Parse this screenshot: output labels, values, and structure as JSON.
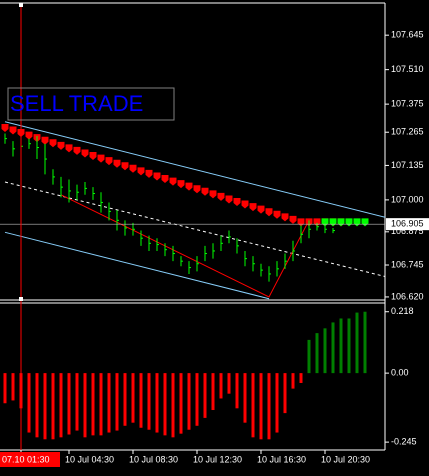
{
  "chart_data": [
    {
      "type": "ohlc",
      "annotation": "SELL TRADE",
      "categories": [
        null,
        null,
        "07.10 01:30",
        null,
        null,
        null,
        null,
        null,
        "10 Jul 04:30",
        null,
        null,
        null,
        null,
        null,
        null,
        null,
        "10 Jul 08:30",
        null,
        null,
        null,
        null,
        null,
        null,
        null,
        "10 Jul 12:30",
        null,
        null,
        null,
        null,
        null,
        null,
        null,
        "10 Jul 16:30",
        null,
        null,
        null,
        null,
        null,
        null,
        null,
        "10 Jul 20:30",
        null,
        null,
        null,
        null,
        null
      ],
      "highlight_x": 2,
      "highlight_color": "#ff0000",
      "bars": {
        "color": "#00ff00",
        "high": [
          107.26,
          107.23,
          107.24,
          107.24,
          107.25,
          107.22,
          107.12,
          107.09,
          107.08,
          107.06,
          107.07,
          107.05,
          107.03,
          106.99,
          106.96,
          106.92,
          106.91,
          106.88,
          106.86,
          106.85,
          106.83,
          106.82,
          106.78,
          106.76,
          106.78,
          106.82,
          106.83,
          106.86,
          106.88,
          106.85,
          106.8,
          106.78,
          106.75,
          106.74,
          106.76,
          106.79,
          106.84,
          106.9,
          106.92,
          106.91,
          106.9,
          106.89,
          null,
          null,
          null,
          null
        ],
        "low": [
          107.22,
          107.17,
          107.18,
          107.2,
          107.16,
          107.1,
          107.06,
          107.01,
          106.99,
          107.0,
          107.02,
          107.0,
          106.95,
          106.92,
          106.88,
          106.86,
          106.86,
          106.82,
          106.8,
          106.8,
          106.78,
          106.76,
          106.74,
          106.71,
          106.72,
          106.76,
          106.77,
          106.8,
          106.83,
          106.79,
          106.74,
          106.72,
          106.7,
          106.68,
          106.7,
          106.73,
          106.76,
          106.83,
          106.85,
          106.88,
          106.87,
          106.87,
          null,
          null,
          null,
          null
        ]
      },
      "ma": [
        {
          "color": "#ff0000",
          "values": [
            107.27,
            107.26,
            107.25,
            107.24,
            107.23,
            107.22,
            107.21,
            107.2,
            107.19,
            107.18,
            107.17,
            107.16,
            107.15,
            107.14,
            107.13,
            107.12,
            107.11,
            107.1,
            107.09,
            107.08,
            107.07,
            107.06,
            107.05,
            107.04,
            107.03,
            107.02,
            107.01,
            107.0,
            106.99,
            106.98,
            106.97,
            106.96,
            106.95,
            106.94,
            106.93,
            106.92,
            106.91,
            106.9,
            106.9,
            106.9,
            106.9,
            106.9,
            106.9,
            null,
            null,
            null
          ]
        },
        {
          "color": "#00ff00",
          "values": [
            null,
            null,
            null,
            null,
            null,
            null,
            null,
            null,
            null,
            null,
            null,
            null,
            null,
            null,
            null,
            null,
            null,
            null,
            null,
            null,
            null,
            null,
            null,
            null,
            null,
            null,
            null,
            null,
            null,
            null,
            null,
            null,
            null,
            null,
            null,
            null,
            null,
            null,
            null,
            null,
            106.9,
            106.9,
            106.9,
            106.9,
            106.9,
            106.9
          ]
        }
      ],
      "lines": [
        {
          "color": "#87cefa",
          "dashed": false,
          "x": [
            0,
            47.5
          ],
          "values": [
            107.306,
            106.932
          ]
        },
        {
          "color": "#87cefa",
          "dashed": false,
          "x": [
            0,
            33
          ],
          "values": [
            106.873,
            106.613
          ]
        },
        {
          "color": "#ffffff",
          "dashed": true,
          "x": [
            0,
            47.5
          ],
          "values": [
            107.07,
            106.7
          ]
        },
        {
          "color": "#ff0000",
          "dashed": false,
          "x": [
            7,
            33,
            38
          ],
          "values": [
            107.02,
            106.62,
            106.92
          ]
        }
      ],
      "price_line": 106.905,
      "ylim": [
        106.608,
        107.771
      ],
      "yticks": [
        107.645,
        {
          "value": 107.51,
          "label": "107.510"
        },
        107.375,
        107.265,
        107.135,
        {
          "value": 107.0,
          "label": "107.000"
        },
        106.875,
        106.745,
        {
          "value": 106.62,
          "label": "106.620"
        }
      ]
    },
    {
      "type": "histogram",
      "positive_color": "#008000",
      "negative_color": "#ff0000",
      "values": [
        -0.107,
        -0.097,
        -0.125,
        -0.211,
        -0.228,
        -0.235,
        -0.235,
        -0.228,
        -0.218,
        -0.204,
        -0.228,
        -0.221,
        -0.221,
        -0.211,
        -0.204,
        -0.187,
        -0.176,
        -0.194,
        -0.201,
        -0.211,
        -0.221,
        -0.228,
        -0.215,
        -0.201,
        -0.187,
        -0.159,
        -0.131,
        -0.09,
        -0.073,
        -0.125,
        -0.176,
        -0.228,
        -0.235,
        -0.235,
        -0.211,
        -0.142,
        -0.055,
        -0.035,
        0.118,
        0.142,
        0.159,
        0.18,
        0.194,
        0.194,
        0.215,
        0.218
      ],
      "ylim": [
        -0.273,
        0.249
      ],
      "yticks": [
        0.218,
        {
          "value": 0,
          "label": "0.00"
        },
        -0.245
      ]
    }
  ]
}
